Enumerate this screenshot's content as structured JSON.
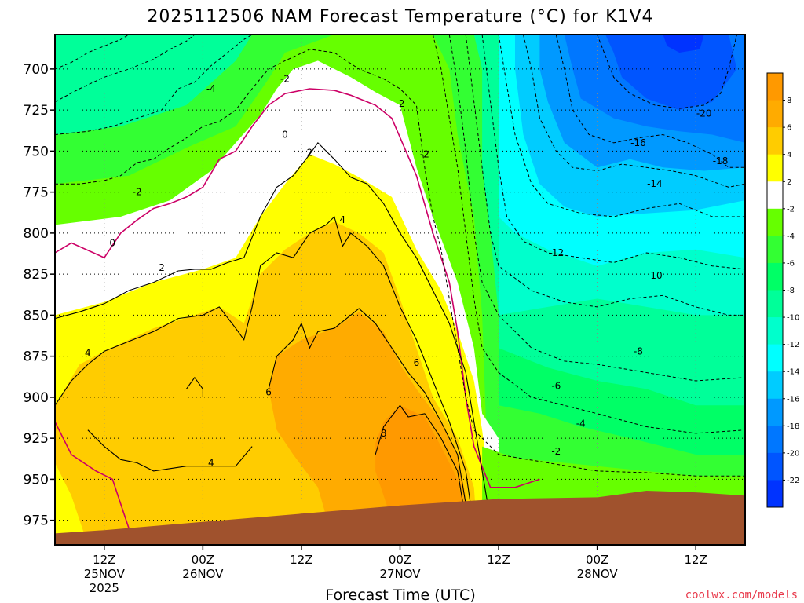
{
  "chart_data": {
    "type": "heatmap",
    "title": "2025112506 NAM Forecast Temperature (°C) for K1V4",
    "xlabel": "Forecast Time (UTC)",
    "ylabel": "",
    "credit": "coolwx.com/models",
    "y_axis": {
      "unit": "hPa",
      "range": [
        679,
        990
      ],
      "ticks": [
        700,
        725,
        750,
        775,
        800,
        825,
        850,
        875,
        900,
        925,
        950,
        975
      ]
    },
    "x_axis": {
      "range_hours": [
        6,
        90
      ],
      "ticks": [
        {
          "hour": 12,
          "lines": [
            "12Z",
            "25NOV",
            "2025"
          ]
        },
        {
          "hour": 24,
          "lines": [
            "00Z",
            "26NOV"
          ]
        },
        {
          "hour": 36,
          "lines": [
            "12Z"
          ]
        },
        {
          "hour": 48,
          "lines": [
            "00Z",
            "27NOV"
          ]
        },
        {
          "hour": 60,
          "lines": [
            "12Z"
          ]
        },
        {
          "hour": 72,
          "lines": [
            "00Z",
            "28NOV"
          ]
        },
        {
          "hour": 84,
          "lines": [
            "12Z"
          ]
        }
      ]
    },
    "grid": true,
    "colorbar": {
      "position": "right",
      "bins": [
        {
          "from": 8,
          "to": 10,
          "color": "#ff9900"
        },
        {
          "from": 6,
          "to": 8,
          "color": "#ffab00"
        },
        {
          "from": 4,
          "to": 6,
          "color": "#ffcc00"
        },
        {
          "from": 2,
          "to": 4,
          "color": "#ffff00"
        },
        {
          "from": -2,
          "to": 2,
          "color": "#ffffff"
        },
        {
          "from": -4,
          "to": -2,
          "color": "#66ff00"
        },
        {
          "from": -6,
          "to": -4,
          "color": "#33ff33"
        },
        {
          "from": -8,
          "to": -6,
          "color": "#00ff66"
        },
        {
          "from": -10,
          "to": -8,
          "color": "#00ff99"
        },
        {
          "from": -12,
          "to": -10,
          "color": "#00ffcc"
        },
        {
          "from": -14,
          "to": -12,
          "color": "#00ffff"
        },
        {
          "from": -16,
          "to": -14,
          "color": "#00ccff"
        },
        {
          "from": -18,
          "to": -16,
          "color": "#0099ff"
        },
        {
          "from": -20,
          "to": -18,
          "color": "#0077ff"
        },
        {
          "from": -22,
          "to": -20,
          "color": "#0055ff"
        },
        {
          "from": -24,
          "to": -22,
          "color": "#0033ff"
        }
      ],
      "tick_labels": [
        "8",
        "6",
        "4",
        "2",
        "-2",
        "-4",
        "-6",
        "-8",
        "-10",
        "-12",
        "-14",
        "-16",
        "-18",
        "-20",
        "-22"
      ]
    },
    "terrain_color": "#a0522d",
    "zero_contour_color": "#cc0066",
    "terrain_surface_hpa": [
      {
        "hour": 6,
        "p": 983
      },
      {
        "hour": 12,
        "p": 981
      },
      {
        "hour": 24,
        "p": 976
      },
      {
        "hour": 36,
        "p": 971
      },
      {
        "hour": 48,
        "p": 966
      },
      {
        "hour": 60,
        "p": 962
      },
      {
        "hour": 72,
        "p": 961
      },
      {
        "hour": 78,
        "p": 957
      },
      {
        "hour": 84,
        "p": 958
      },
      {
        "hour": 90,
        "p": 960
      }
    ],
    "contour_labels": [
      {
        "text": "-2",
        "hour": 34,
        "p": 706
      },
      {
        "text": "-2",
        "hour": 48,
        "p": 721
      },
      {
        "text": "-2",
        "hour": 51,
        "p": 752
      },
      {
        "text": "-4",
        "hour": 25,
        "p": 712
      },
      {
        "text": "-2",
        "hour": 16,
        "p": 775
      },
      {
        "text": "0",
        "hour": 34,
        "p": 740
      },
      {
        "text": "0",
        "hour": 13,
        "p": 806
      },
      {
        "text": "2",
        "hour": 37,
        "p": 751
      },
      {
        "text": "2",
        "hour": 19,
        "p": 821
      },
      {
        "text": "4",
        "hour": 41,
        "p": 792
      },
      {
        "text": "4",
        "hour": 10,
        "p": 873
      },
      {
        "text": "4",
        "hour": 25,
        "p": 940
      },
      {
        "text": "6",
        "hour": 32,
        "p": 897
      },
      {
        "text": "6",
        "hour": 50,
        "p": 879
      },
      {
        "text": "8",
        "hour": 46,
        "p": 922
      },
      {
        "text": "-12",
        "hour": 67,
        "p": 812
      },
      {
        "text": "-10",
        "hour": 79,
        "p": 826
      },
      {
        "text": "-8",
        "hour": 77,
        "p": 872
      },
      {
        "text": "-6",
        "hour": 67,
        "p": 893
      },
      {
        "text": "-4",
        "hour": 70,
        "p": 916
      },
      {
        "text": "-2",
        "hour": 67,
        "p": 933
      },
      {
        "text": "-14",
        "hour": 79,
        "p": 770
      },
      {
        "text": "-16",
        "hour": 77,
        "p": 745
      },
      {
        "text": "-18",
        "hour": 87,
        "p": 756
      },
      {
        "text": "-20",
        "hour": 85,
        "p": 727
      }
    ]
  }
}
